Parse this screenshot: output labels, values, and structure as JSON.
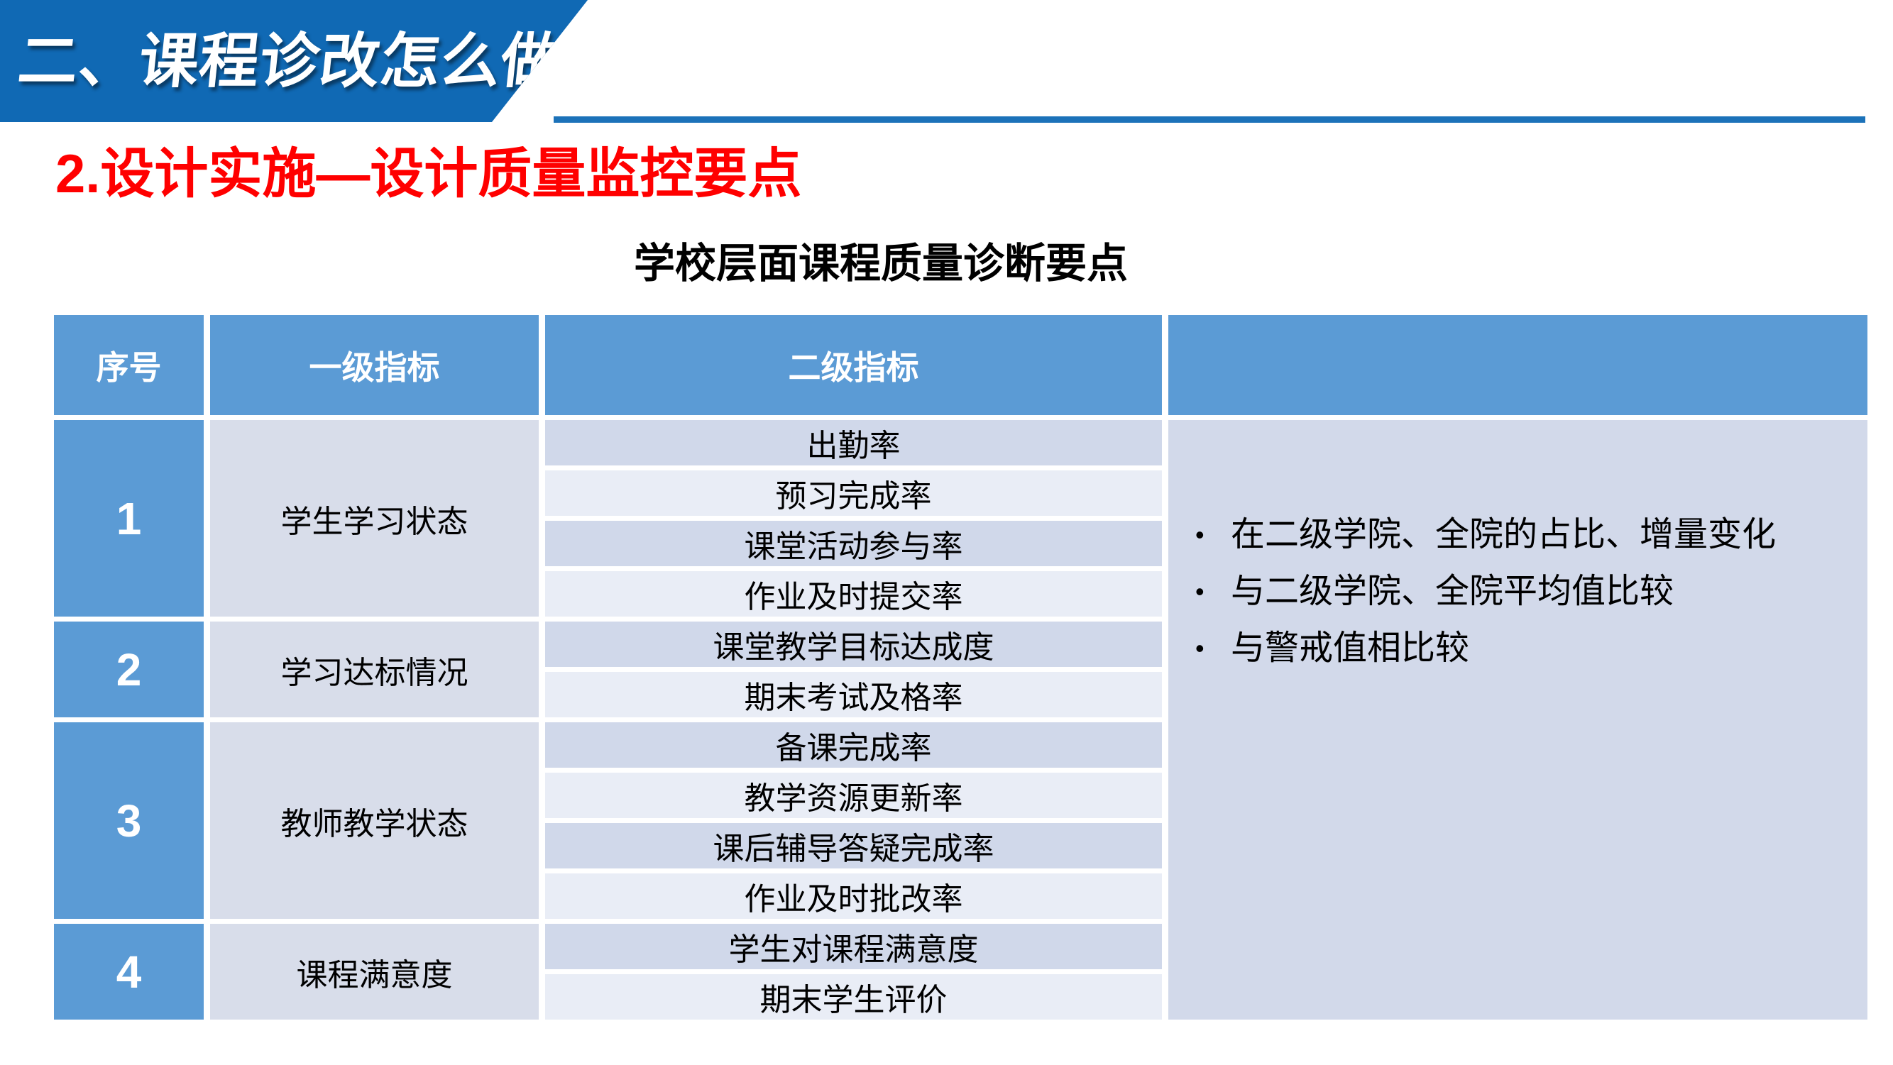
{
  "banner": {
    "title": "二、课程诊改怎么做?"
  },
  "heading": {
    "title": "2.设计实施—设计质量监控要点"
  },
  "table_title": "学校层面课程质量诊断要点",
  "table": {
    "headers": [
      "序号",
      "一级指标",
      "二级指标",
      ""
    ],
    "groups": [
      {
        "num": "1",
        "indicator": "学生学习状态",
        "sub_indicators": [
          "出勤率",
          "预习完成率",
          "课堂活动参与率",
          "作业及时提交率"
        ]
      },
      {
        "num": "2",
        "indicator": "学习达标情况",
        "sub_indicators": [
          "课堂教学目标达成度",
          "期末考试及格率"
        ]
      },
      {
        "num": "3",
        "indicator": "教师教学状态",
        "sub_indicators": [
          "备课完成率",
          "教学资源更新率",
          "课后辅导答疑完成率",
          "作业及时批改率"
        ]
      },
      {
        "num": "4",
        "indicator": "课程满意度",
        "sub_indicators": [
          "学生对课程满意度",
          "期末学生评价"
        ]
      }
    ],
    "notes": [
      "在二级学院、全院的占比、增量变化",
      "与二级学院、全院平均值比较",
      "与警戒值相比较"
    ],
    "note_bullet_glyph": "•"
  },
  "colors": {
    "banner_blue": "#1069B4",
    "underline_blue": "#1C72B9",
    "header_blue": "#5B9BD5",
    "col2_bg": "#D8DDEA",
    "band_dark": "#D0D8EA",
    "band_light": "#E9EDF6",
    "notes_bg": "#D2D9EA",
    "heading_red": "#FF0000"
  }
}
